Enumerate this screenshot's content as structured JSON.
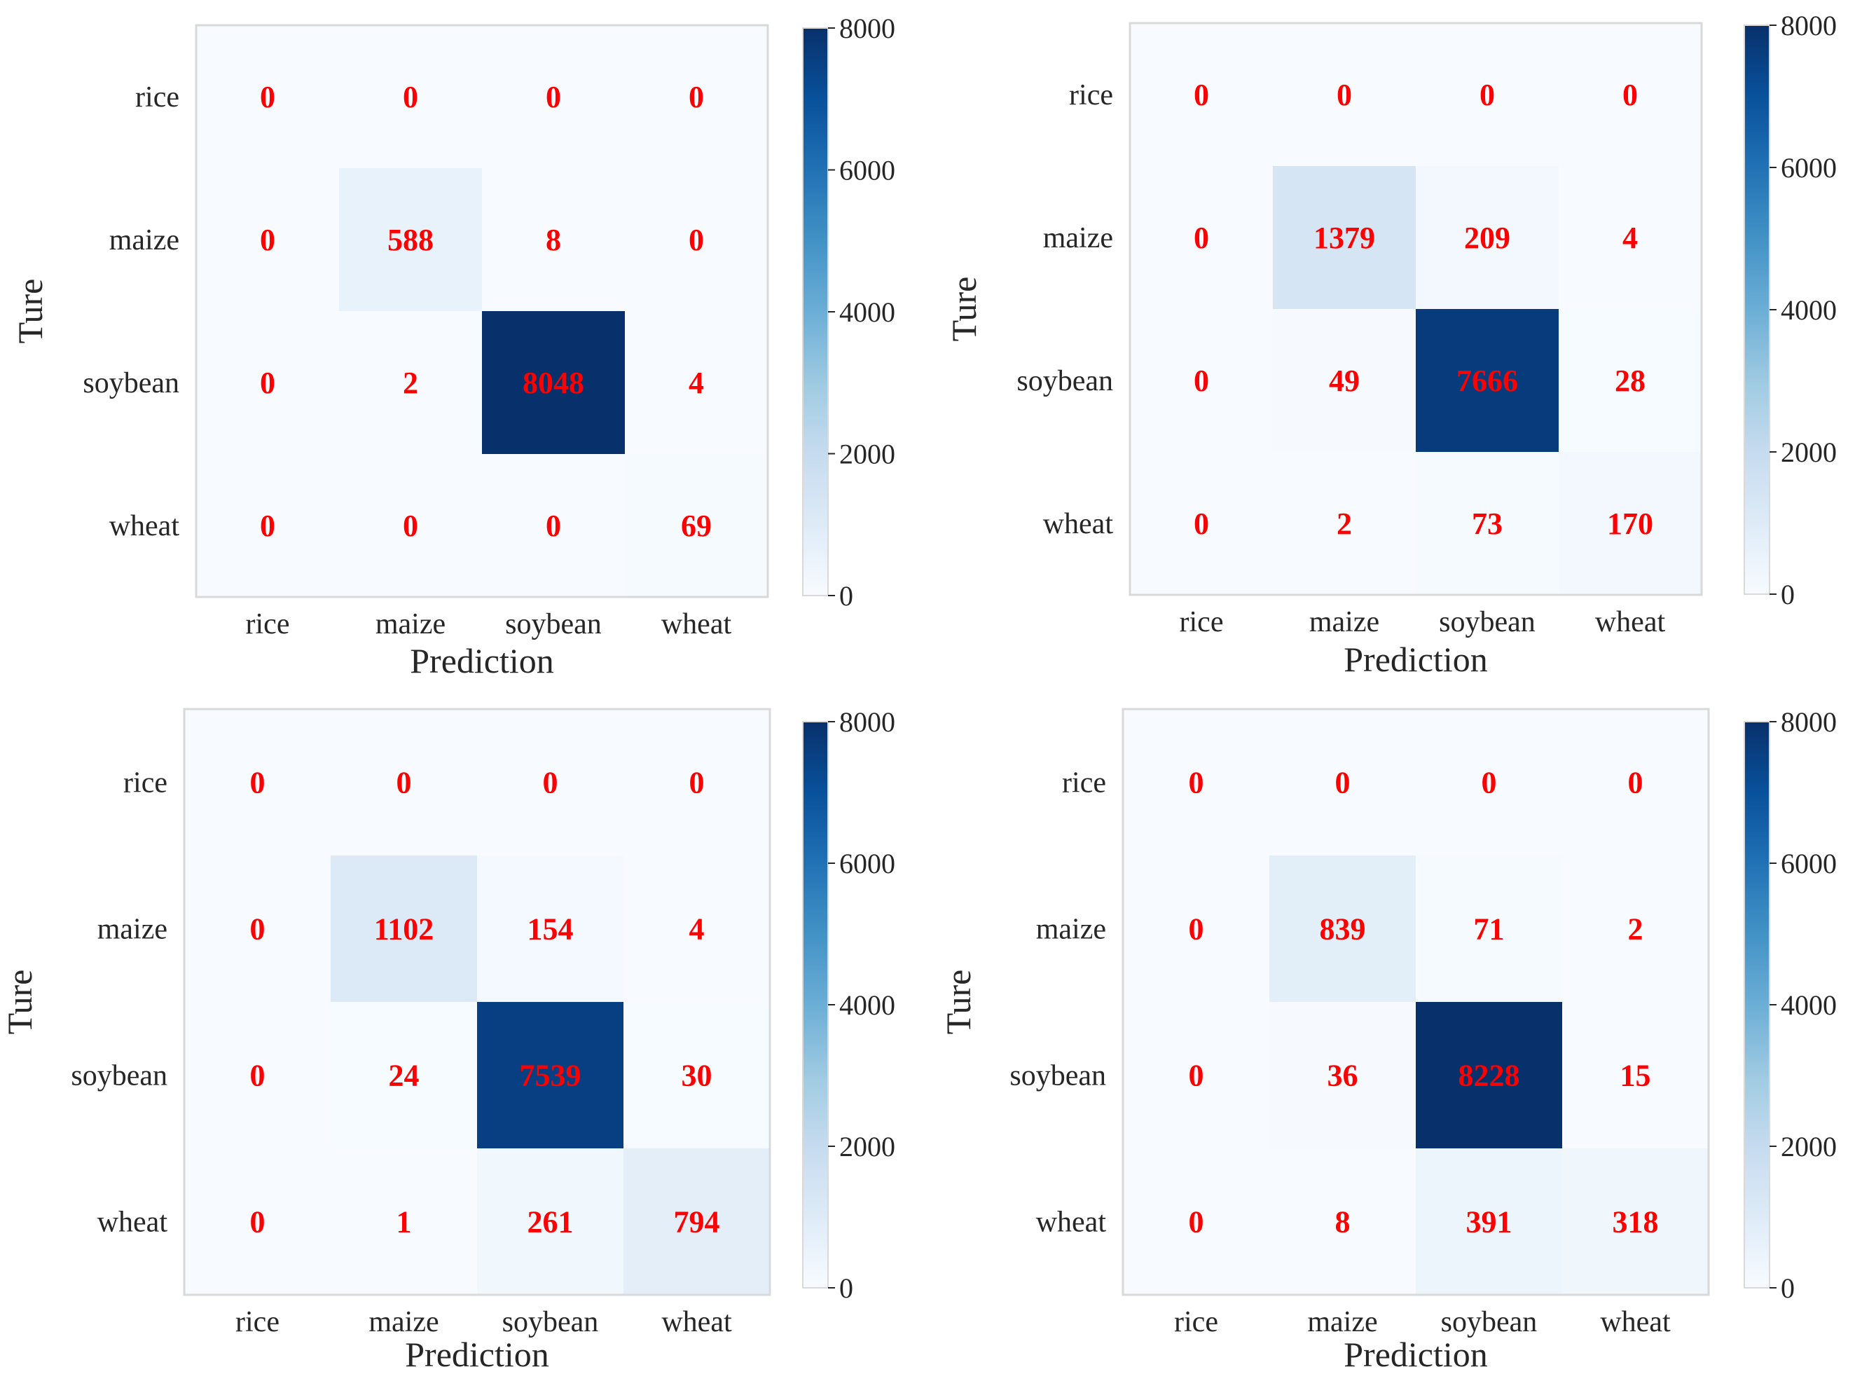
{
  "chart_data": [
    {
      "type": "heatmap",
      "xlabel": "Prediction",
      "ylabel": "Ture",
      "categories": [
        "rice",
        "maize",
        "soybean",
        "wheat"
      ],
      "values": [
        [
          0,
          0,
          0,
          0
        ],
        [
          0,
          588,
          8,
          0
        ],
        [
          0,
          2,
          8048,
          4
        ],
        [
          0,
          0,
          0,
          69
        ]
      ],
      "colorbar": {
        "min": 0,
        "max": 8000,
        "ticks": [
          "0",
          "2000",
          "4000",
          "6000",
          "8000"
        ]
      },
      "label_color": "#ff0000"
    },
    {
      "type": "heatmap",
      "xlabel": "Prediction",
      "ylabel": "Ture",
      "categories": [
        "rice",
        "maize",
        "soybean",
        "wheat"
      ],
      "values": [
        [
          0,
          0,
          0,
          0
        ],
        [
          0,
          1379,
          209,
          4
        ],
        [
          0,
          49,
          7666,
          28
        ],
        [
          0,
          2,
          73,
          170
        ]
      ],
      "colorbar": {
        "min": 0,
        "max": 8000,
        "ticks": [
          "0",
          "2000",
          "4000",
          "6000",
          "8000"
        ]
      },
      "label_color": "#ff0000"
    },
    {
      "type": "heatmap",
      "xlabel": "Prediction",
      "ylabel": "Ture",
      "categories": [
        "rice",
        "maize",
        "soybean",
        "wheat"
      ],
      "values": [
        [
          0,
          0,
          0,
          0
        ],
        [
          0,
          1102,
          154,
          4
        ],
        [
          0,
          24,
          7539,
          30
        ],
        [
          0,
          1,
          261,
          794
        ]
      ],
      "colorbar": {
        "min": 0,
        "max": 8000,
        "ticks": [
          "0",
          "2000",
          "4000",
          "6000",
          "8000"
        ]
      },
      "label_color": "#ff0000"
    },
    {
      "type": "heatmap",
      "xlabel": "Prediction",
      "ylabel": "Ture",
      "categories": [
        "rice",
        "maize",
        "soybean",
        "wheat"
      ],
      "values": [
        [
          0,
          0,
          0,
          0
        ],
        [
          0,
          839,
          71,
          2
        ],
        [
          0,
          36,
          8228,
          15
        ],
        [
          0,
          8,
          391,
          318
        ]
      ],
      "colorbar": {
        "min": 0,
        "max": 8000,
        "ticks": [
          "0",
          "2000",
          "4000",
          "6000",
          "8000"
        ]
      },
      "label_color": "#ff0000"
    }
  ]
}
